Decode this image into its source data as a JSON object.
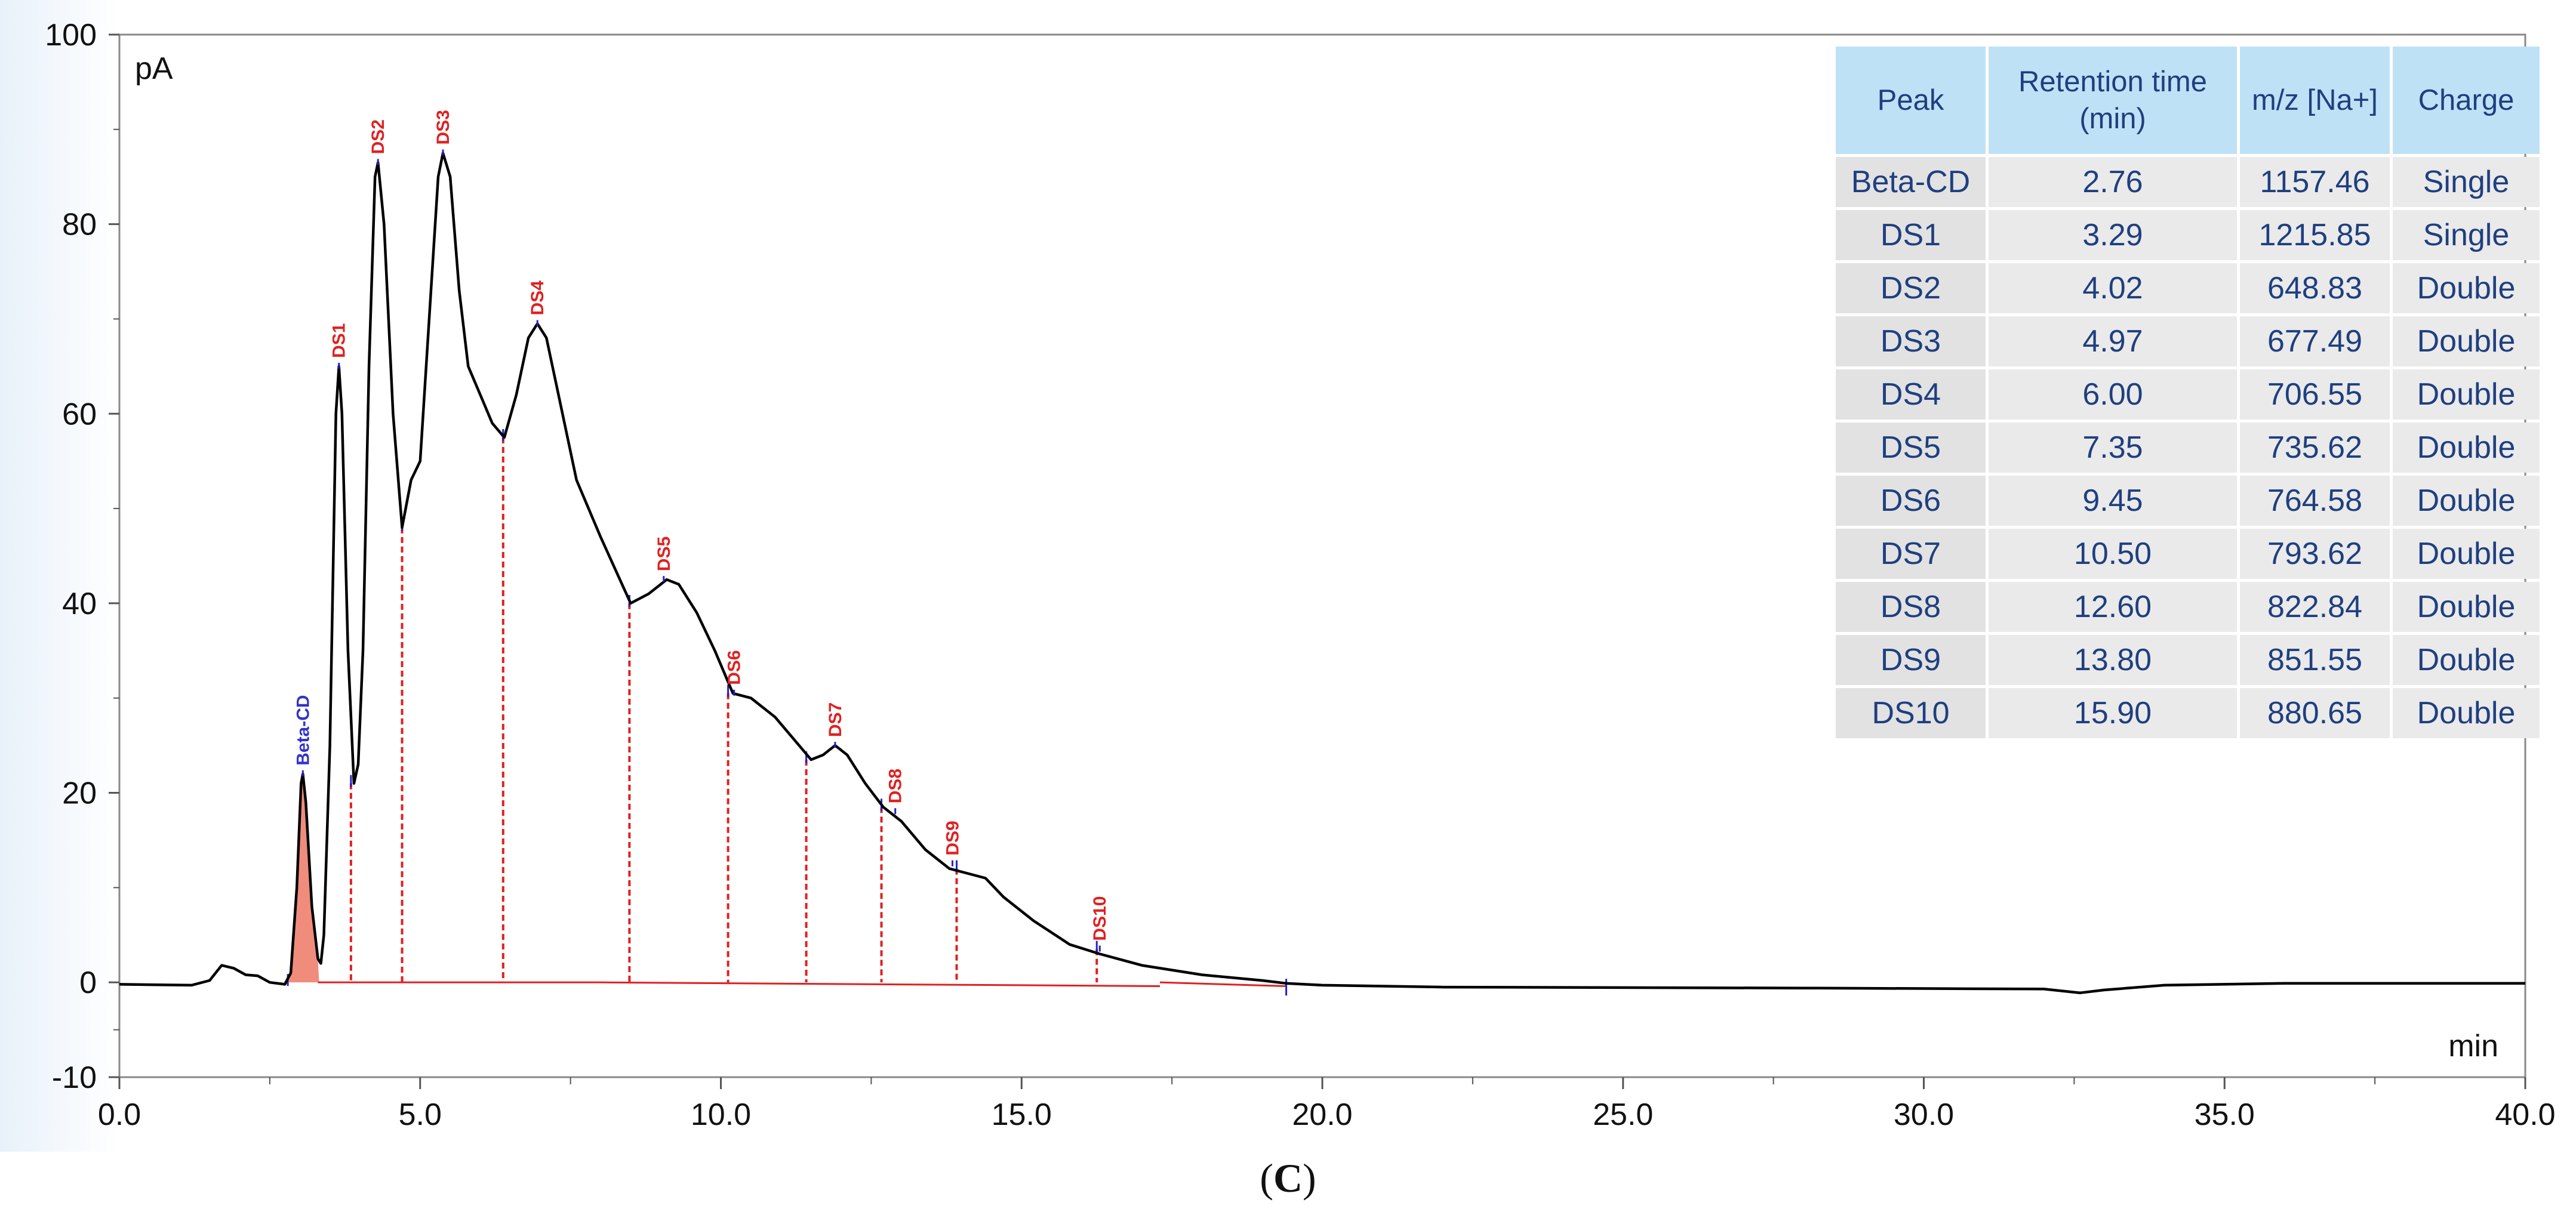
{
  "chart_data": {
    "type": "line",
    "y_unit_label": "pA",
    "x_unit_label": "min",
    "xlim": [
      0,
      40
    ],
    "ylim": [
      -10,
      100
    ],
    "x_ticks": [
      "0.0",
      "5.0",
      "10.0",
      "15.0",
      "20.0",
      "25.0",
      "30.0",
      "35.0",
      "40.0"
    ],
    "y_ticks": [
      "-10",
      "0",
      "20",
      "40",
      "60",
      "80",
      "100"
    ],
    "colors": {
      "trace": "#000000",
      "peak_fill": "#f08c7c",
      "peak_divider": "#e02020",
      "beta_label": "#3333cc",
      "ds_label": "#e02020",
      "table_header_bg": "#bfe1f6",
      "table_text": "#1f3f7f"
    },
    "trace": [
      [
        0,
        -0.2
      ],
      [
        1.2,
        -0.3
      ],
      [
        1.5,
        0.2
      ],
      [
        1.7,
        1.8
      ],
      [
        1.9,
        1.5
      ],
      [
        2.1,
        0.8
      ],
      [
        2.3,
        0.7
      ],
      [
        2.5,
        0
      ],
      [
        2.75,
        -0.2
      ],
      [
        2.85,
        1
      ],
      [
        2.95,
        10
      ],
      [
        3.02,
        21
      ],
      [
        3.05,
        22
      ],
      [
        3.1,
        19
      ],
      [
        3.2,
        8
      ],
      [
        3.3,
        2.5
      ],
      [
        3.35,
        2
      ],
      [
        3.4,
        5
      ],
      [
        3.5,
        25
      ],
      [
        3.6,
        60
      ],
      [
        3.65,
        65
      ],
      [
        3.7,
        60
      ],
      [
        3.8,
        35
      ],
      [
        3.9,
        21
      ],
      [
        3.97,
        23
      ],
      [
        4.05,
        35
      ],
      [
        4.15,
        65
      ],
      [
        4.25,
        85
      ],
      [
        4.3,
        86.5
      ],
      [
        4.4,
        80
      ],
      [
        4.55,
        60
      ],
      [
        4.7,
        48
      ],
      [
        4.85,
        53
      ],
      [
        5.0,
        55
      ],
      [
        5.15,
        70
      ],
      [
        5.3,
        85
      ],
      [
        5.38,
        87.5
      ],
      [
        5.5,
        85
      ],
      [
        5.65,
        73
      ],
      [
        5.8,
        65
      ],
      [
        6.0,
        62
      ],
      [
        6.2,
        59
      ],
      [
        6.4,
        57.5
      ],
      [
        6.6,
        62
      ],
      [
        6.8,
        68
      ],
      [
        6.95,
        69.5
      ],
      [
        7.1,
        68
      ],
      [
        7.3,
        62
      ],
      [
        7.6,
        53
      ],
      [
        8.0,
        47
      ],
      [
        8.5,
        40
      ],
      [
        8.8,
        41
      ],
      [
        9.1,
        42.5
      ],
      [
        9.3,
        42
      ],
      [
        9.6,
        39
      ],
      [
        9.9,
        35
      ],
      [
        10.2,
        30.5
      ],
      [
        10.5,
        30
      ],
      [
        10.9,
        28
      ],
      [
        11.3,
        25
      ],
      [
        11.5,
        23.5
      ],
      [
        11.7,
        24
      ],
      [
        11.9,
        25
      ],
      [
        12.1,
        24
      ],
      [
        12.4,
        21
      ],
      [
        12.7,
        18.5
      ],
      [
        13.0,
        17
      ],
      [
        13.4,
        14
      ],
      [
        13.8,
        12
      ],
      [
        14.1,
        11.5
      ],
      [
        14.4,
        11
      ],
      [
        14.7,
        9
      ],
      [
        15.2,
        6.5
      ],
      [
        15.8,
        4
      ],
      [
        16.3,
        3
      ],
      [
        17.0,
        1.8
      ],
      [
        18.0,
        0.8
      ],
      [
        19.0,
        0.2
      ],
      [
        19.4,
        -0.1
      ],
      [
        20.0,
        -0.3
      ],
      [
        22.0,
        -0.5
      ],
      [
        28.0,
        -0.6
      ],
      [
        32.0,
        -0.7
      ],
      [
        32.6,
        -1.1
      ],
      [
        33.0,
        -0.8
      ],
      [
        34.0,
        -0.3
      ],
      [
        36.0,
        -0.1
      ],
      [
        40.0,
        -0.1
      ]
    ],
    "peak_dividers": [
      {
        "x": 3.85,
        "y": 21
      },
      {
        "x": 4.7,
        "y": 48
      },
      {
        "x": 6.38,
        "y": 57.5
      },
      {
        "x": 8.48,
        "y": 40
      },
      {
        "x": 10.12,
        "y": 30.5
      },
      {
        "x": 11.42,
        "y": 23.5
      },
      {
        "x": 12.67,
        "y": 18.5
      },
      {
        "x": 13.92,
        "y": 12
      },
      {
        "x": 16.25,
        "y": 3.5
      }
    ],
    "baseline_segments": [
      [
        3.3,
        3.85
      ],
      [
        3.85,
        8.0
      ],
      [
        8.0,
        17.3
      ],
      [
        17.3,
        19.4
      ]
    ],
    "peak_labels": [
      {
        "name": "Beta-CD",
        "x": 3.05,
        "y": 22,
        "color_key": "beta_label"
      },
      {
        "name": "DS1",
        "x": 3.65,
        "y": 65,
        "color_key": "ds_label"
      },
      {
        "name": "DS2",
        "x": 4.3,
        "y": 86.5,
        "color_key": "ds_label"
      },
      {
        "name": "DS3",
        "x": 5.38,
        "y": 87.5,
        "color_key": "ds_label"
      },
      {
        "name": "DS4",
        "x": 6.95,
        "y": 69.5,
        "color_key": "ds_label"
      },
      {
        "name": "DS5",
        "x": 9.05,
        "y": 42.5,
        "color_key": "ds_label"
      },
      {
        "name": "DS6",
        "x": 10.22,
        "y": 30.5,
        "color_key": "ds_label"
      },
      {
        "name": "DS7",
        "x": 11.9,
        "y": 25,
        "color_key": "ds_label"
      },
      {
        "name": "DS8",
        "x": 12.9,
        "y": 18,
        "color_key": "ds_label"
      },
      {
        "name": "DS9",
        "x": 13.85,
        "y": 12.5,
        "color_key": "ds_label"
      },
      {
        "name": "DS10",
        "x": 16.3,
        "y": 3.5,
        "color_key": "ds_label"
      }
    ]
  },
  "table": {
    "headers": [
      "Peak",
      "Retention time (min)",
      "m/z [Na+]",
      "Charge"
    ],
    "rows": [
      [
        "Beta-CD",
        "2.76",
        "1157.46",
        "Single"
      ],
      [
        "DS1",
        "3.29",
        "1215.85",
        "Single"
      ],
      [
        "DS2",
        "4.02",
        "648.83",
        "Double"
      ],
      [
        "DS3",
        "4.97",
        "677.49",
        "Double"
      ],
      [
        "DS4",
        "6.00",
        "706.55",
        "Double"
      ],
      [
        "DS5",
        "7.35",
        "735.62",
        "Double"
      ],
      [
        "DS6",
        "9.45",
        "764.58",
        "Double"
      ],
      [
        "DS7",
        "10.50",
        "793.62",
        "Double"
      ],
      [
        "DS8",
        "12.60",
        "822.84",
        "Double"
      ],
      [
        "DS9",
        "13.80",
        "851.55",
        "Double"
      ],
      [
        "DS10",
        "15.90",
        "880.65",
        "Double"
      ]
    ]
  },
  "caption": {
    "open": "(",
    "letter": "C",
    "close": ")"
  }
}
